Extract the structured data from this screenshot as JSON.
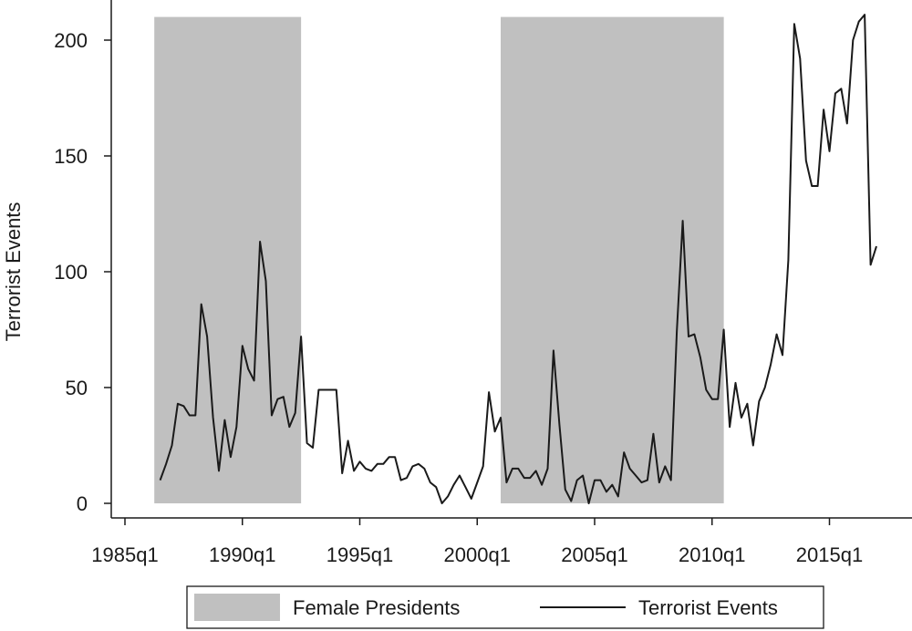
{
  "chart_data": {
    "type": "line",
    "ylabel": "Terrorist Events",
    "xlabel": "",
    "ylim": [
      0,
      210
    ],
    "yticks": [
      0,
      50,
      100,
      150,
      200
    ],
    "xticks": [
      {
        "label": "1985q1",
        "t": 1985.0
      },
      {
        "label": "1990q1",
        "t": 1990.0
      },
      {
        "label": "1995q1",
        "t": 1995.0
      },
      {
        "label": "2000q1",
        "t": 2000.0
      },
      {
        "label": "2005q1",
        "t": 2005.0
      },
      {
        "label": "2010q1",
        "t": 2010.0
      },
      {
        "label": "2015q1",
        "t": 2015.0
      }
    ],
    "grid": false,
    "legend_position": "bottom",
    "legend": [
      {
        "label": "Female Presidents",
        "kind": "shaded-area",
        "color": "#c0c0c0"
      },
      {
        "label": "Terrorist Events",
        "kind": "line",
        "color": "#1a1a1a"
      }
    ],
    "shaded_periods": [
      {
        "name": "Female Presidents",
        "start": 1986.25,
        "end": 1992.5
      },
      {
        "name": "Female Presidents",
        "start": 2001.0,
        "end": 2010.5
      }
    ],
    "series": [
      {
        "name": "Terrorist Events",
        "color": "#1a1a1a",
        "points": [
          [
            1986.5,
            10
          ],
          [
            1986.75,
            17
          ],
          [
            1987.0,
            25
          ],
          [
            1987.25,
            43
          ],
          [
            1987.5,
            42
          ],
          [
            1987.75,
            38
          ],
          [
            1988.0,
            38
          ],
          [
            1988.25,
            86
          ],
          [
            1988.5,
            72
          ],
          [
            1988.75,
            37
          ],
          [
            1989.0,
            14
          ],
          [
            1989.25,
            36
          ],
          [
            1989.5,
            20
          ],
          [
            1989.75,
            33
          ],
          [
            1990.0,
            68
          ],
          [
            1990.25,
            58
          ],
          [
            1990.5,
            53
          ],
          [
            1990.75,
            113
          ],
          [
            1991.0,
            96
          ],
          [
            1991.25,
            38
          ],
          [
            1991.5,
            45
          ],
          [
            1991.75,
            46
          ],
          [
            1992.0,
            33
          ],
          [
            1992.25,
            39
          ],
          [
            1992.5,
            72
          ],
          [
            1992.75,
            26
          ],
          [
            1993.0,
            24
          ],
          [
            1993.25,
            49
          ],
          [
            1993.5,
            49
          ],
          [
            1993.75,
            49
          ],
          [
            1994.0,
            49
          ],
          [
            1994.25,
            13
          ],
          [
            1994.5,
            27
          ],
          [
            1994.75,
            14
          ],
          [
            1995.0,
            18
          ],
          [
            1995.25,
            15
          ],
          [
            1995.5,
            14
          ],
          [
            1995.75,
            17
          ],
          [
            1996.0,
            17
          ],
          [
            1996.25,
            20
          ],
          [
            1996.5,
            20
          ],
          [
            1996.75,
            10
          ],
          [
            1997.0,
            11
          ],
          [
            1997.25,
            16
          ],
          [
            1997.5,
            17
          ],
          [
            1997.75,
            15
          ],
          [
            1998.0,
            9
          ],
          [
            1998.25,
            7
          ],
          [
            1998.5,
            0
          ],
          [
            1998.75,
            3
          ],
          [
            1999.0,
            8
          ],
          [
            1999.25,
            12
          ],
          [
            1999.5,
            7
          ],
          [
            1999.75,
            2
          ],
          [
            2000.0,
            9
          ],
          [
            2000.25,
            16
          ],
          [
            2000.5,
            48
          ],
          [
            2000.75,
            31
          ],
          [
            2001.0,
            37
          ],
          [
            2001.25,
            9
          ],
          [
            2001.5,
            15
          ],
          [
            2001.75,
            15
          ],
          [
            2002.0,
            11
          ],
          [
            2002.25,
            11
          ],
          [
            2002.5,
            14
          ],
          [
            2002.75,
            8
          ],
          [
            2003.0,
            15
          ],
          [
            2003.25,
            66
          ],
          [
            2003.5,
            34
          ],
          [
            2003.75,
            6
          ],
          [
            2004.0,
            1
          ],
          [
            2004.25,
            10
          ],
          [
            2004.5,
            12
          ],
          [
            2004.75,
            0
          ],
          [
            2005.0,
            10
          ],
          [
            2005.25,
            10
          ],
          [
            2005.5,
            5
          ],
          [
            2005.75,
            8
          ],
          [
            2006.0,
            3
          ],
          [
            2006.25,
            22
          ],
          [
            2006.5,
            15
          ],
          [
            2006.75,
            12
          ],
          [
            2007.0,
            9
          ],
          [
            2007.25,
            10
          ],
          [
            2007.5,
            30
          ],
          [
            2007.75,
            9
          ],
          [
            2008.0,
            16
          ],
          [
            2008.25,
            10
          ],
          [
            2008.5,
            74
          ],
          [
            2008.75,
            122
          ],
          [
            2009.0,
            72
          ],
          [
            2009.25,
            73
          ],
          [
            2009.5,
            63
          ],
          [
            2009.75,
            49
          ],
          [
            2010.0,
            45
          ],
          [
            2010.25,
            45
          ],
          [
            2010.5,
            75
          ],
          [
            2010.75,
            33
          ],
          [
            2011.0,
            52
          ],
          [
            2011.25,
            37
          ],
          [
            2011.5,
            43
          ],
          [
            2011.75,
            25
          ],
          [
            2012.0,
            44
          ],
          [
            2012.25,
            50
          ],
          [
            2012.5,
            60
          ],
          [
            2012.75,
            73
          ],
          [
            2013.0,
            64
          ],
          [
            2013.25,
            105
          ],
          [
            2013.5,
            207
          ],
          [
            2013.75,
            192
          ],
          [
            2014.0,
            148
          ],
          [
            2014.25,
            137
          ],
          [
            2014.5,
            137
          ],
          [
            2014.75,
            170
          ],
          [
            2015.0,
            152
          ],
          [
            2015.25,
            177
          ],
          [
            2015.5,
            179
          ],
          [
            2015.75,
            164
          ],
          [
            2016.0,
            200
          ],
          [
            2016.25,
            208
          ],
          [
            2016.5,
            211
          ],
          [
            2016.75,
            103
          ],
          [
            2017.0,
            111
          ]
        ]
      }
    ]
  }
}
